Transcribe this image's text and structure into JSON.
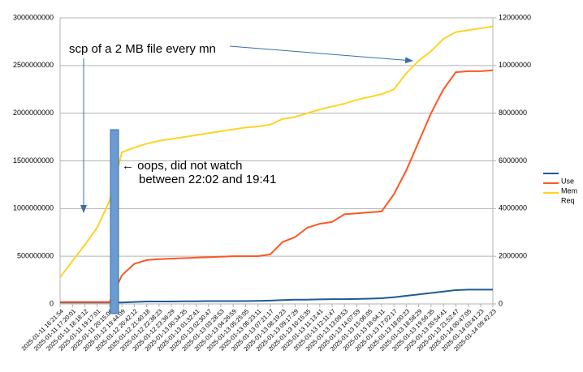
{
  "chart_data": {
    "type": "line",
    "categories": [
      "2025-01-11 16:21:54",
      "2025-01-11 17:20:01",
      "2025-01-11 18:18:12",
      "2025-01-11 19:17:01",
      "2025-01-11 20:15:06",
      "2025-01-12 19:44:09",
      "2025-01-12 20:42:12",
      "2025-01-12 21:40:18",
      "2025-01-12 22:38:23",
      "2025-01-12 23:36:29",
      "2025-01-13 00:34:35",
      "2025-01-13 01:32:41",
      "2025-01-13 02:30:47",
      "2025-01-13 03:28:53",
      "2025-01-13 04:26:59",
      "2025-01-13 05:25:05",
      "2025-01-13 06:23:11",
      "2025-01-13 07:21:17",
      "2025-01-13 08:19:23",
      "2025-01-13 09:17:29",
      "2025-01-13 10:15:35",
      "2025-01-13 11:13:41",
      "2025-01-13 12:11:47",
      "2025-01-13 13:09:53",
      "2025-01-13 14:07:59",
      "2025-01-13 15:06:05",
      "2025-01-13 16:04:11",
      "2025-01-13 17:02:17",
      "2025-01-13 18:00:23",
      "2025-01-13 18:58:29",
      "2025-01-13 19:56:35",
      "2025-01-13 20:54:41",
      "2025-01-13 21:52:47",
      "2025-01-14 00:47:05",
      "2025-01-14 03:41:23",
      "2025-01-14 09:42:23"
    ],
    "series": [
      {
        "name": "Use",
        "color": "#1f5a96",
        "values": [
          15000000,
          15000000,
          15000000,
          15000000,
          15000000,
          15000000,
          20000000,
          25000000,
          25000000,
          25000000,
          28000000,
          28000000,
          30000000,
          30000000,
          30000000,
          30000000,
          32000000,
          35000000,
          40000000,
          45000000,
          45000000,
          48000000,
          50000000,
          50000000,
          52000000,
          55000000,
          60000000,
          70000000,
          85000000,
          100000000,
          115000000,
          130000000,
          145000000,
          150000000,
          150000000,
          150000000
        ]
      },
      {
        "name": "Mem",
        "color": "#ff5722",
        "values": [
          20000000,
          20000000,
          20000000,
          20000000,
          20000000,
          300000000,
          420000000,
          460000000,
          470000000,
          475000000,
          480000000,
          485000000,
          490000000,
          495000000,
          500000000,
          500000000,
          500000000,
          520000000,
          650000000,
          700000000,
          800000000,
          840000000,
          860000000,
          940000000,
          950000000,
          960000000,
          970000000,
          1150000000,
          1400000000,
          1700000000,
          2000000000,
          2250000000,
          2430000000,
          2440000000,
          2440000000,
          2450000000
        ]
      },
      {
        "name": "Req",
        "color": "#ffd320",
        "values": [
          280000000,
          450000000,
          620000000,
          800000000,
          1080000000,
          1590000000,
          1640000000,
          1680000000,
          1710000000,
          1730000000,
          1750000000,
          1770000000,
          1790000000,
          1810000000,
          1830000000,
          1850000000,
          1860000000,
          1880000000,
          1940000000,
          1960000000,
          2000000000,
          2040000000,
          2070000000,
          2100000000,
          2140000000,
          2170000000,
          2200000000,
          2250000000,
          2420000000,
          2550000000,
          2650000000,
          2780000000,
          2850000000,
          2870000000,
          2890000000,
          2910000000
        ]
      }
    ],
    "ylim": [
      0,
      3000000000
    ],
    "yticks": [
      0,
      500000000,
      1000000000,
      1500000000,
      2000000000,
      2500000000,
      3000000000
    ],
    "y2lim": [
      0,
      12000000
    ],
    "y2ticks": [
      0,
      2000000,
      4000000,
      6000000,
      8000000,
      10000000,
      12000000
    ],
    "grid": true,
    "legend": "right",
    "annotations": [
      "scp of a 2 MB file every mn",
      "← oops, did not watch",
      "between 22:02 and 19:41"
    ]
  }
}
